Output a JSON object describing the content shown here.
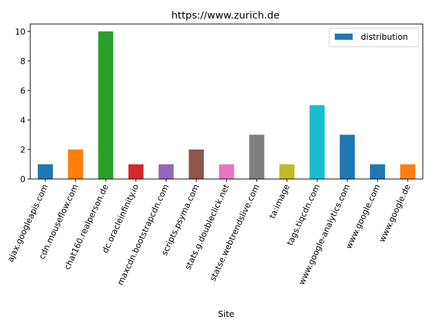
{
  "chart_data": {
    "type": "bar",
    "title": "https://www.zurich.de",
    "xlabel": "Site",
    "ylabel": "",
    "ylim": [
      0,
      10.5
    ],
    "yticks": [
      0,
      2,
      4,
      6,
      8,
      10
    ],
    "grid": false,
    "legend_position": "top-right",
    "categories": [
      "ajax.googleapis.com",
      "cdn.mouseflow.com",
      "chat160.realperson.de",
      "dc.oracleinfinity.io",
      "maxcdn.bootstrapcdn.com",
      "scripts.psyma.com",
      "stats.g.doubleclick.net",
      "statse.webtrendslive.com",
      "ta:image",
      "tags.tiqcdn.com",
      "www.google-analytics.com",
      "www.google.com",
      "www.google.de"
    ],
    "series": [
      {
        "name": "distribution",
        "values": [
          1,
          2,
          10,
          1,
          1,
          2,
          1,
          3,
          1,
          5,
          3,
          1,
          1
        ],
        "legend_color": "#1f77b4"
      }
    ],
    "bar_colors": [
      "#1f77b4",
      "#ff7f0e",
      "#2ca02c",
      "#d62728",
      "#9467bd",
      "#8c564b",
      "#e377c2",
      "#7f7f7f",
      "#bcbd22",
      "#17becf",
      "#1f77b4",
      "#1f77b4",
      "#ff7f0e"
    ]
  }
}
